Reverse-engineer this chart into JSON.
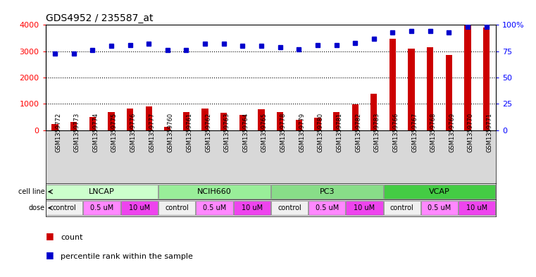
{
  "title": "GDS4952 / 235587_at",
  "samples": [
    "GSM1359772",
    "GSM1359773",
    "GSM1359774",
    "GSM1359775",
    "GSM1359776",
    "GSM1359777",
    "GSM1359760",
    "GSM1359761",
    "GSM1359762",
    "GSM1359763",
    "GSM1359764",
    "GSM1359765",
    "GSM1359778",
    "GSM1359779",
    "GSM1359780",
    "GSM1359781",
    "GSM1359782",
    "GSM1359783",
    "GSM1359766",
    "GSM1359767",
    "GSM1359768",
    "GSM1359769",
    "GSM1359770",
    "GSM1359771"
  ],
  "counts": [
    220,
    300,
    490,
    680,
    820,
    900,
    130,
    690,
    830,
    650,
    590,
    800,
    680,
    380,
    460,
    680,
    980,
    1380,
    3480,
    3100,
    3160,
    2870,
    3980,
    3900
  ],
  "percentile": [
    73,
    73,
    76,
    80,
    81,
    82,
    76,
    76,
    82,
    82,
    80,
    80,
    79,
    77,
    81,
    81,
    83,
    87,
    93,
    94,
    94,
    93,
    98,
    98
  ],
  "cell_lines": [
    {
      "name": "LNCAP",
      "start": 0,
      "end": 6,
      "color": "#ccffcc"
    },
    {
      "name": "NCIH660",
      "start": 6,
      "end": 12,
      "color": "#99ee99"
    },
    {
      "name": "PC3",
      "start": 12,
      "end": 18,
      "color": "#88dd88"
    },
    {
      "name": "VCAP",
      "start": 18,
      "end": 24,
      "color": "#44cc44"
    }
  ],
  "cell_line_colors": [
    "#ccffcc",
    "#99ee99",
    "#88dd88",
    "#44cc44"
  ],
  "doses": [
    {
      "label": "control",
      "start": 0,
      "end": 2,
      "color": "#f0f0f0"
    },
    {
      "label": "0.5 uM",
      "start": 2,
      "end": 4,
      "color": "#ff88ff"
    },
    {
      "label": "10 uM",
      "start": 4,
      "end": 6,
      "color": "#ee44ee"
    },
    {
      "label": "control",
      "start": 6,
      "end": 8,
      "color": "#f0f0f0"
    },
    {
      "label": "0.5 uM",
      "start": 8,
      "end": 10,
      "color": "#ff88ff"
    },
    {
      "label": "10 uM",
      "start": 10,
      "end": 12,
      "color": "#ee44ee"
    },
    {
      "label": "control",
      "start": 12,
      "end": 14,
      "color": "#f0f0f0"
    },
    {
      "label": "0.5 uM",
      "start": 14,
      "end": 16,
      "color": "#ff88ff"
    },
    {
      "label": "10 uM",
      "start": 16,
      "end": 18,
      "color": "#ee44ee"
    },
    {
      "label": "control",
      "start": 18,
      "end": 20,
      "color": "#f0f0f0"
    },
    {
      "label": "0.5 uM",
      "start": 20,
      "end": 22,
      "color": "#ff88ff"
    },
    {
      "label": "10 uM",
      "start": 22,
      "end": 24,
      "color": "#ee44ee"
    }
  ],
  "bar_color": "#cc0000",
  "dot_color": "#0000cc",
  "ylim_left": [
    0,
    4000
  ],
  "ylim_right": [
    0,
    100
  ],
  "yticks_left": [
    0,
    1000,
    2000,
    3000,
    4000
  ],
  "yticks_right": [
    0,
    25,
    50,
    75,
    100
  ],
  "ytick_labels_right": [
    "0",
    "25",
    "50",
    "75",
    "100%"
  ],
  "grid_values": [
    1000,
    2000,
    3000
  ],
  "bar_width": 0.35,
  "bg_color": "#ffffff",
  "sample_bg": "#d8d8d8"
}
